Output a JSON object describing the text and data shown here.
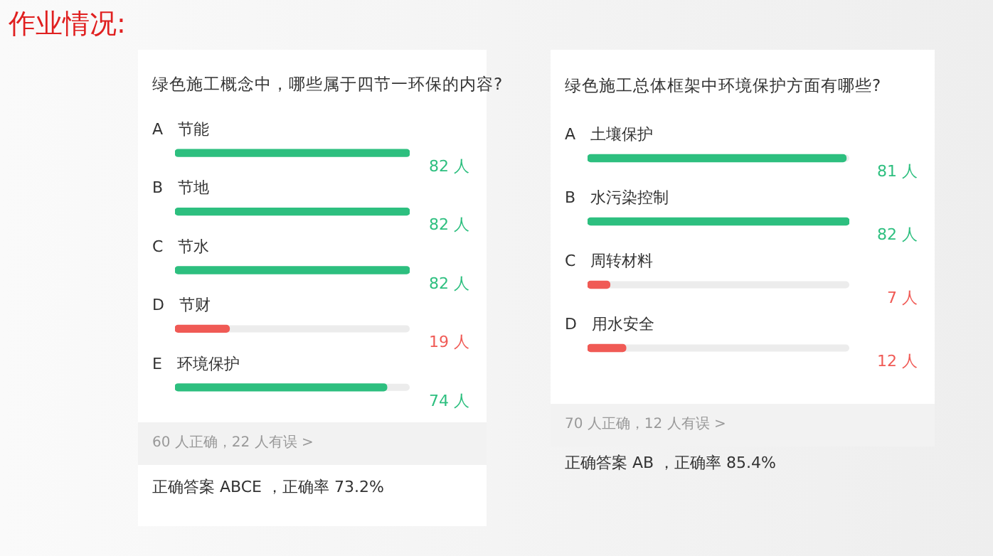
{
  "chart_data": [
    {
      "type": "bar",
      "orientation": "horizontal",
      "title": "绿色施工概念中，哪些属于四节一环保的内容?",
      "categories": [
        "A   节能",
        "B   节地",
        "C   节水",
        "D   节财",
        "E   环境保护"
      ],
      "values": [
        82,
        82,
        82,
        19,
        74
      ],
      "colors": [
        "#2dbf7f",
        "#2dbf7f",
        "#2dbf7f",
        "#f05a55",
        "#2dbf7f"
      ],
      "value_labels": [
        "82 人",
        "82 人",
        "82 人",
        "19 人",
        "74 人"
      ],
      "annotations": [
        "作业情况:",
        "60 人正确，22 人有误  >",
        "正确答案 ABCE ，正确率 73.2%"
      ]
    },
    {
      "type": "bar",
      "orientation": "horizontal",
      "title": "绿色施工总体框架中环境保护方面有哪些?",
      "categories": [
        "A   土壤保护",
        "B   水污染控制",
        "C   周转材料",
        "D   用水安全"
      ],
      "values": [
        81,
        82,
        7,
        12
      ],
      "colors": [
        "#2dbf7f",
        "#2dbf7f",
        "#f05a55",
        "#f05a55"
      ],
      "value_labels": [
        "81 人",
        "82 人",
        "7 人",
        "12 人"
      ],
      "annotations": [
        "70 人正确，12 人有误  >",
        "正确答案 AB ，正确率 85.4%"
      ]
    }
  ]
}
